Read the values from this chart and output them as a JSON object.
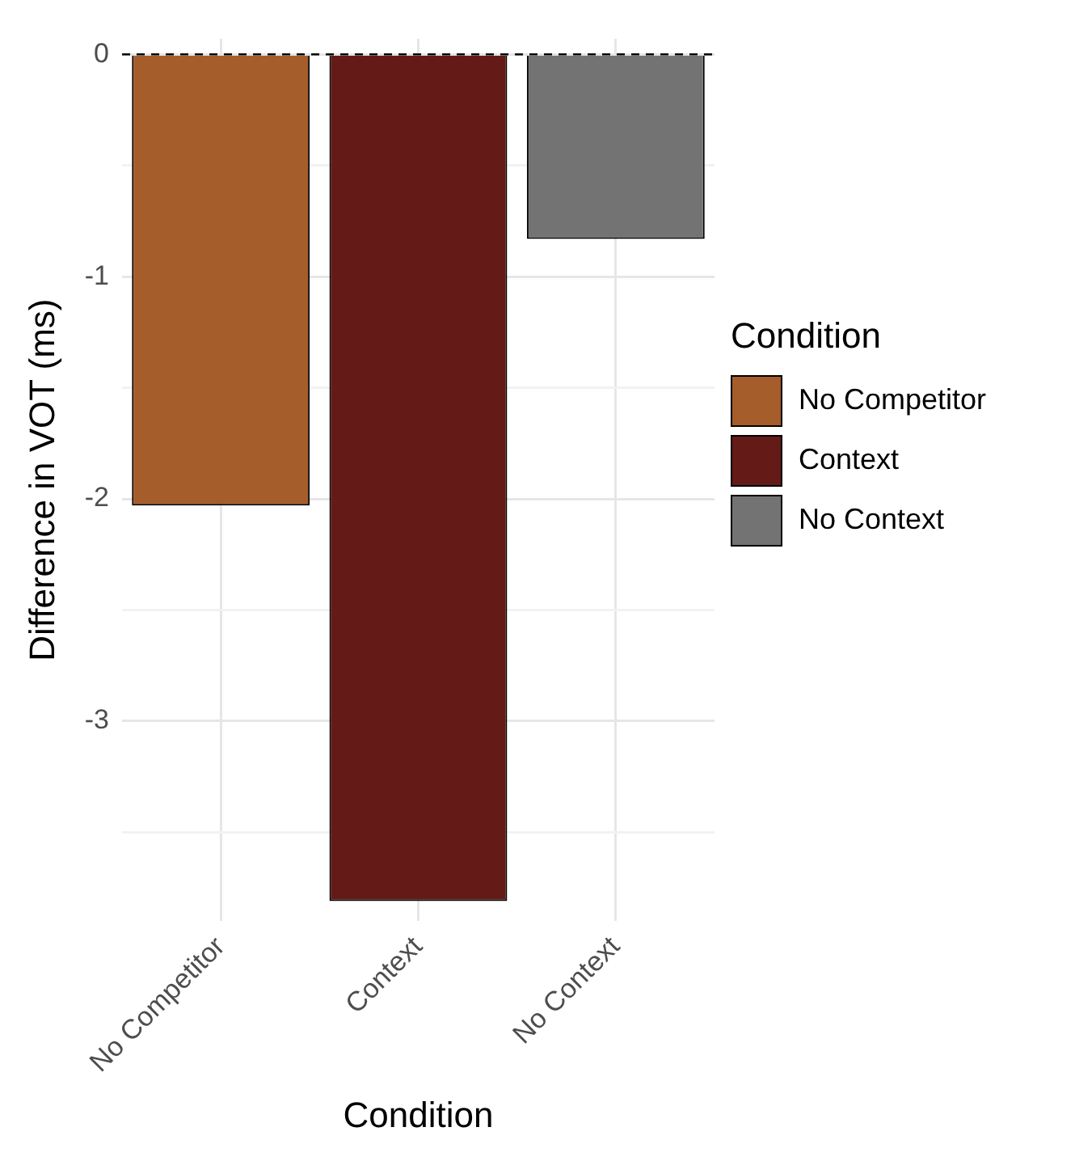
{
  "chart_data": {
    "type": "bar",
    "xlabel": "Condition",
    "ylabel": "Difference in VOT (ms)",
    "legend_title": "Condition",
    "categories": [
      "No Competitor",
      "Context",
      "No Context"
    ],
    "series": [
      {
        "name": "No Competitor",
        "color": "#a55d2b",
        "values": [
          -2.03,
          null,
          null
        ]
      },
      {
        "name": "Context",
        "color": "#641a16",
        "values": [
          null,
          -3.81,
          null
        ]
      },
      {
        "name": "No Context",
        "color": "#737373",
        "values": [
          null,
          null,
          -0.83
        ]
      }
    ],
    "ylim": [
      -3.9,
      0.07
    ],
    "yticks": [
      {
        "value": -3.5,
        "label": null
      },
      -3,
      {
        "value": -2.5,
        "label": null
      },
      -2,
      {
        "value": -1.5,
        "label": null
      },
      -1,
      {
        "value": -0.5,
        "label": null
      },
      0
    ],
    "ref_lines": [
      {
        "axis": "y",
        "value": 0,
        "line_style": "dashed",
        "color": "#000000"
      }
    ],
    "grid": true,
    "legend": "right"
  }
}
